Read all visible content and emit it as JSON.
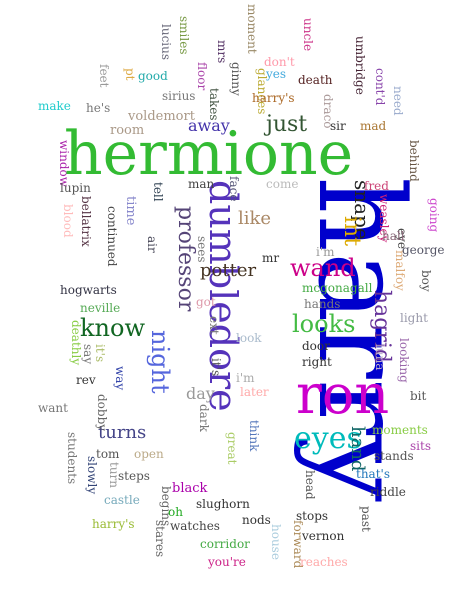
{
  "words": [
    {
      "id": "harry",
      "text": "harry",
      "color": "#0000cc"
    },
    {
      "id": "hermione",
      "text": "hermione",
      "color": "#33bb33"
    },
    {
      "id": "ron",
      "text": "ron",
      "color": "#cc00cc"
    },
    {
      "id": "dumbledore",
      "text": "dumbledore",
      "color": "#5533bb"
    },
    {
      "id": "eyes",
      "text": "eyes",
      "color": "#00bbbb"
    },
    {
      "id": "wand",
      "text": "wand",
      "color": "#cc0088"
    },
    {
      "id": "looks",
      "text": "looks",
      "color": "#44bb44"
    },
    {
      "id": "know",
      "text": "know",
      "color": "#116622"
    },
    {
      "id": "night",
      "text": "night",
      "color": "#5566dd"
    },
    {
      "id": "professor",
      "text": "professor",
      "color": "#554477"
    },
    {
      "id": "hagrid",
      "text": "hagrid",
      "color": "#663399"
    },
    {
      "id": "snape",
      "text": "snape",
      "color": "#222222"
    },
    {
      "id": "just",
      "text": "just",
      "color": "#335533"
    },
    {
      "id": "int",
      "text": "int",
      "color": "#ddaa00"
    },
    {
      "id": "potter",
      "text": "potter",
      "color": "#443322"
    },
    {
      "id": "turns",
      "text": "turns",
      "color": "#444488"
    },
    {
      "id": "like",
      "text": "like",
      "color": "#aa8866"
    },
    {
      "id": "hand",
      "text": "hand",
      "color": "#116666"
    },
    {
      "id": "away",
      "text": "away",
      "color": "#4433aa"
    },
    {
      "id": "day",
      "text": "day",
      "color": "#999999"
    },
    {
      "id": "room",
      "text": "room",
      "color": "#aa9988"
    },
    {
      "id": "voldemort",
      "text": "voldemort",
      "color": "#aa9988"
    },
    {
      "id": "moment",
      "text": "moment",
      "color": "#998866"
    },
    {
      "id": "smiles",
      "text": "smiles",
      "color": "#779944"
    },
    {
      "id": "lucius",
      "text": "lucius",
      "color": "#666677"
    },
    {
      "id": "mrs",
      "text": "mrs",
      "color": "#553366"
    },
    {
      "id": "ginny",
      "text": "ginny",
      "color": "#555555"
    },
    {
      "id": "glances",
      "text": "glances",
      "color": "#bbaa33"
    },
    {
      "id": "dont",
      "text": "don't",
      "color": "#ff99aa"
    },
    {
      "id": "uncle",
      "text": "uncle",
      "color": "#cc3388"
    },
    {
      "id": "umbridge",
      "text": "umbridge",
      "color": "#442233"
    },
    {
      "id": "contd",
      "text": "cont'd",
      "color": "#8844aa"
    },
    {
      "id": "need",
      "text": "need",
      "color": "#99aacc"
    },
    {
      "id": "feet",
      "text": "feet",
      "color": "#999999"
    },
    {
      "id": "pt",
      "text": "pt",
      "color": "#ddaa44"
    },
    {
      "id": "good",
      "text": "good",
      "color": "#22aaaa"
    },
    {
      "id": "floor",
      "text": "floor",
      "color": "#aa44aa"
    },
    {
      "id": "yes",
      "text": "yes",
      "color": "#44aadd"
    },
    {
      "id": "death",
      "text": "death",
      "color": "#552222"
    },
    {
      "id": "sirius",
      "text": "sirius",
      "color": "#777777"
    },
    {
      "id": "takes",
      "text": "takes",
      "color": "#445544"
    },
    {
      "id": "harrys1",
      "text": "harry's",
      "color": "#aa6622"
    },
    {
      "id": "draco",
      "text": "draco",
      "color": "#aa9999"
    },
    {
      "id": "make",
      "text": "make",
      "color": "#22cccc"
    },
    {
      "id": "hes",
      "text": "he's",
      "color": "#777777"
    },
    {
      "id": "sir",
      "text": "sir",
      "color": "#333333"
    },
    {
      "id": "mad",
      "text": "mad",
      "color": "#aa7733"
    },
    {
      "id": "window",
      "text": "window",
      "color": "#aa22aa"
    },
    {
      "id": "behind",
      "text": "behind",
      "color": "#665544"
    },
    {
      "id": "lupin",
      "text": "lupin",
      "color": "#555555"
    },
    {
      "id": "tell",
      "text": "tell",
      "color": "#334455"
    },
    {
      "id": "man",
      "text": "man",
      "color": "#444444"
    },
    {
      "id": "face",
      "text": "face",
      "color": "#555577"
    },
    {
      "id": "come",
      "text": "come",
      "color": "#bbbbbb"
    },
    {
      "id": "fred",
      "text": "fred",
      "color": "#cc4477"
    },
    {
      "id": "blood",
      "text": "blood",
      "color": "#ffbbbb"
    },
    {
      "id": "bellatrix",
      "text": "bellatrix",
      "color": "#553344"
    },
    {
      "id": "continued",
      "text": "continued",
      "color": "#444444"
    },
    {
      "id": "time",
      "text": "time",
      "color": "#8888cc"
    },
    {
      "id": "air",
      "text": "air",
      "color": "#444455"
    },
    {
      "id": "sees",
      "text": "sees",
      "color": "#777777"
    },
    {
      "id": "mr",
      "text": "mr",
      "color": "#333333"
    },
    {
      "id": "im1",
      "text": "i'm",
      "color": "#999999"
    },
    {
      "id": "weasley",
      "text": "weasley",
      "color": "#cc2277"
    },
    {
      "id": "eye",
      "text": "eye",
      "color": "#444444"
    },
    {
      "id": "hall",
      "text": "hall",
      "color": "#886677"
    },
    {
      "id": "going",
      "text": "going",
      "color": "#cc44cc"
    },
    {
      "id": "george",
      "text": "george",
      "color": "#555566"
    },
    {
      "id": "malfoy",
      "text": "malfoy",
      "color": "#ddaa77"
    },
    {
      "id": "boy",
      "text": "boy",
      "color": "#555555"
    },
    {
      "id": "hogwarts",
      "text": "hogwarts",
      "color": "#333344"
    },
    {
      "id": "neville",
      "text": "neville",
      "color": "#55aa55"
    },
    {
      "id": "got",
      "text": "got",
      "color": "#dd99aa"
    },
    {
      "id": "ext",
      "text": "ext",
      "color": "#777777"
    },
    {
      "id": "mcgonagall",
      "text": "mcgonagall",
      "color": "#44aa44"
    },
    {
      "id": "hands",
      "text": "hands",
      "color": "#777777"
    },
    {
      "id": "light",
      "text": "light",
      "color": "#9999aa"
    },
    {
      "id": "deathly",
      "text": "deathly",
      "color": "#88cc44"
    },
    {
      "id": "its1",
      "text": "it's",
      "color": "#aabb66"
    },
    {
      "id": "say",
      "text": "say",
      "color": "#777777"
    },
    {
      "id": "its2",
      "text": "it's",
      "color": "#555555"
    },
    {
      "id": "look",
      "text": "look",
      "color": "#aabbcc"
    },
    {
      "id": "door",
      "text": "door",
      "color": "#333333"
    },
    {
      "id": "luna",
      "text": "luna",
      "color": "#bbaacc"
    },
    {
      "id": "looking",
      "text": "looking",
      "color": "#9966aa"
    },
    {
      "id": "rev",
      "text": "rev",
      "color": "#333333"
    },
    {
      "id": "way",
      "text": "way",
      "color": "#3344aa"
    },
    {
      "id": "right",
      "text": "right",
      "color": "#333333"
    },
    {
      "id": "im2",
      "text": "i'm",
      "color": "#aaaaaa"
    },
    {
      "id": "later",
      "text": "later",
      "color": "#ffaaaa"
    },
    {
      "id": "bit",
      "text": "bit",
      "color": "#555555"
    },
    {
      "id": "want",
      "text": "want",
      "color": "#777777"
    },
    {
      "id": "dobby",
      "text": "dobby",
      "color": "#666666"
    },
    {
      "id": "dark",
      "text": "dark",
      "color": "#777777"
    },
    {
      "id": "great",
      "text": "great",
      "color": "#aacc66"
    },
    {
      "id": "think",
      "text": "think",
      "color": "#5577bb"
    },
    {
      "id": "moments",
      "text": "moments",
      "color": "#88cc44"
    },
    {
      "id": "students",
      "text": "students",
      "color": "#777777"
    },
    {
      "id": "tom",
      "text": "tom",
      "color": "#555555"
    },
    {
      "id": "open",
      "text": "open",
      "color": "#bbaa88"
    },
    {
      "id": "sits",
      "text": "sits",
      "color": "#aa44aa"
    },
    {
      "id": "slowly",
      "text": "slowly",
      "color": "#334477"
    },
    {
      "id": "turn",
      "text": "turn",
      "color": "#999999"
    },
    {
      "id": "steps",
      "text": "steps",
      "color": "#555555"
    },
    {
      "id": "stands",
      "text": "stands",
      "color": "#555555"
    },
    {
      "id": "thats",
      "text": "that's",
      "color": "#2277bb"
    },
    {
      "id": "head",
      "text": "head",
      "color": "#555555"
    },
    {
      "id": "black",
      "text": "black",
      "color": "#aa00aa"
    },
    {
      "id": "riddle",
      "text": "riddle",
      "color": "#444444"
    },
    {
      "id": "castle",
      "text": "castle",
      "color": "#77aabb"
    },
    {
      "id": "begins",
      "text": "begins",
      "color": "#666666"
    },
    {
      "id": "oh",
      "text": "oh",
      "color": "#22aa22"
    },
    {
      "id": "slughorn",
      "text": "slughorn",
      "color": "#333333"
    },
    {
      "id": "stops",
      "text": "stops",
      "color": "#333333"
    },
    {
      "id": "past",
      "text": "past",
      "color": "#555555"
    },
    {
      "id": "harrys2",
      "text": "harry's",
      "color": "#99bb33"
    },
    {
      "id": "watches",
      "text": "watches",
      "color": "#444444"
    },
    {
      "id": "nods",
      "text": "nods",
      "color": "#333333"
    },
    {
      "id": "stares",
      "text": "stares",
      "color": "#666666"
    },
    {
      "id": "corridor",
      "text": "corridor",
      "color": "#44aa44"
    },
    {
      "id": "house",
      "text": "house",
      "color": "#aaccdd"
    },
    {
      "id": "forward",
      "text": "forward",
      "color": "#aa8855"
    },
    {
      "id": "vernon",
      "text": "vernon",
      "color": "#333333"
    },
    {
      "id": "youre",
      "text": "you're",
      "color": "#cc2288"
    },
    {
      "id": "reaches",
      "text": "reaches",
      "color": "#ffaaaa"
    }
  ]
}
